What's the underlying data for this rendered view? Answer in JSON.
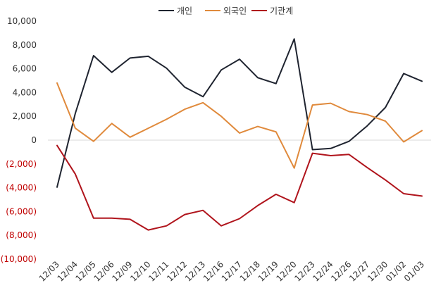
{
  "chart_data": {
    "type": "line",
    "title": "",
    "xlabel": "",
    "ylabel": "",
    "categories": [
      "12/03",
      "12/04",
      "12/05",
      "12/06",
      "12/09",
      "12/10",
      "12/11",
      "12/12",
      "12/13",
      "12/16",
      "12/17",
      "12/18",
      "12/19",
      "12/20",
      "12/23",
      "12/24",
      "12/26",
      "12/27",
      "12/30",
      "01/02",
      "01/03"
    ],
    "series": [
      {
        "name": "개인",
        "color": "#1f2430",
        "values": [
          -3950,
          2250,
          7100,
          5700,
          6900,
          7050,
          6050,
          4450,
          3650,
          5900,
          6800,
          5250,
          4750,
          8500,
          -800,
          -700,
          -100,
          1200,
          2750,
          5600,
          4950
        ]
      },
      {
        "name": "외국인",
        "color": "#e08a3c",
        "values": [
          4800,
          1000,
          -100,
          1400,
          250,
          1000,
          1750,
          2600,
          3150,
          2000,
          600,
          1150,
          700,
          -2350,
          2950,
          3100,
          2400,
          2150,
          1600,
          -150,
          800
        ]
      },
      {
        "name": "기관계",
        "color": "#b0141c",
        "values": [
          -450,
          -2850,
          -6550,
          -6550,
          -6650,
          -7550,
          -7200,
          -6250,
          -5900,
          -7200,
          -6600,
          -5500,
          -4550,
          -5250,
          -1100,
          -1300,
          -1200,
          -2300,
          -3350,
          -4500,
          -4700
        ]
      }
    ],
    "ylim": [
      -10000,
      10000
    ],
    "y_ticks": [
      {
        "v": 10000,
        "label": "10,000"
      },
      {
        "v": 8000,
        "label": "8,000"
      },
      {
        "v": 6000,
        "label": "6,000"
      },
      {
        "v": 4000,
        "label": "4,000"
      },
      {
        "v": 2000,
        "label": "2,000"
      },
      {
        "v": 0,
        "label": "0"
      },
      {
        "v": -2000,
        "label": "(2,000)"
      },
      {
        "v": -4000,
        "label": "(4,000)"
      },
      {
        "v": -6000,
        "label": "(6,000)"
      },
      {
        "v": -8000,
        "label": "(8,000)"
      },
      {
        "v": -10000,
        "label": "(10,000)"
      }
    ],
    "negative_tick_color": "#c00000",
    "positive_tick_color": "#333333",
    "grid": false,
    "legend_position": "top-center"
  }
}
